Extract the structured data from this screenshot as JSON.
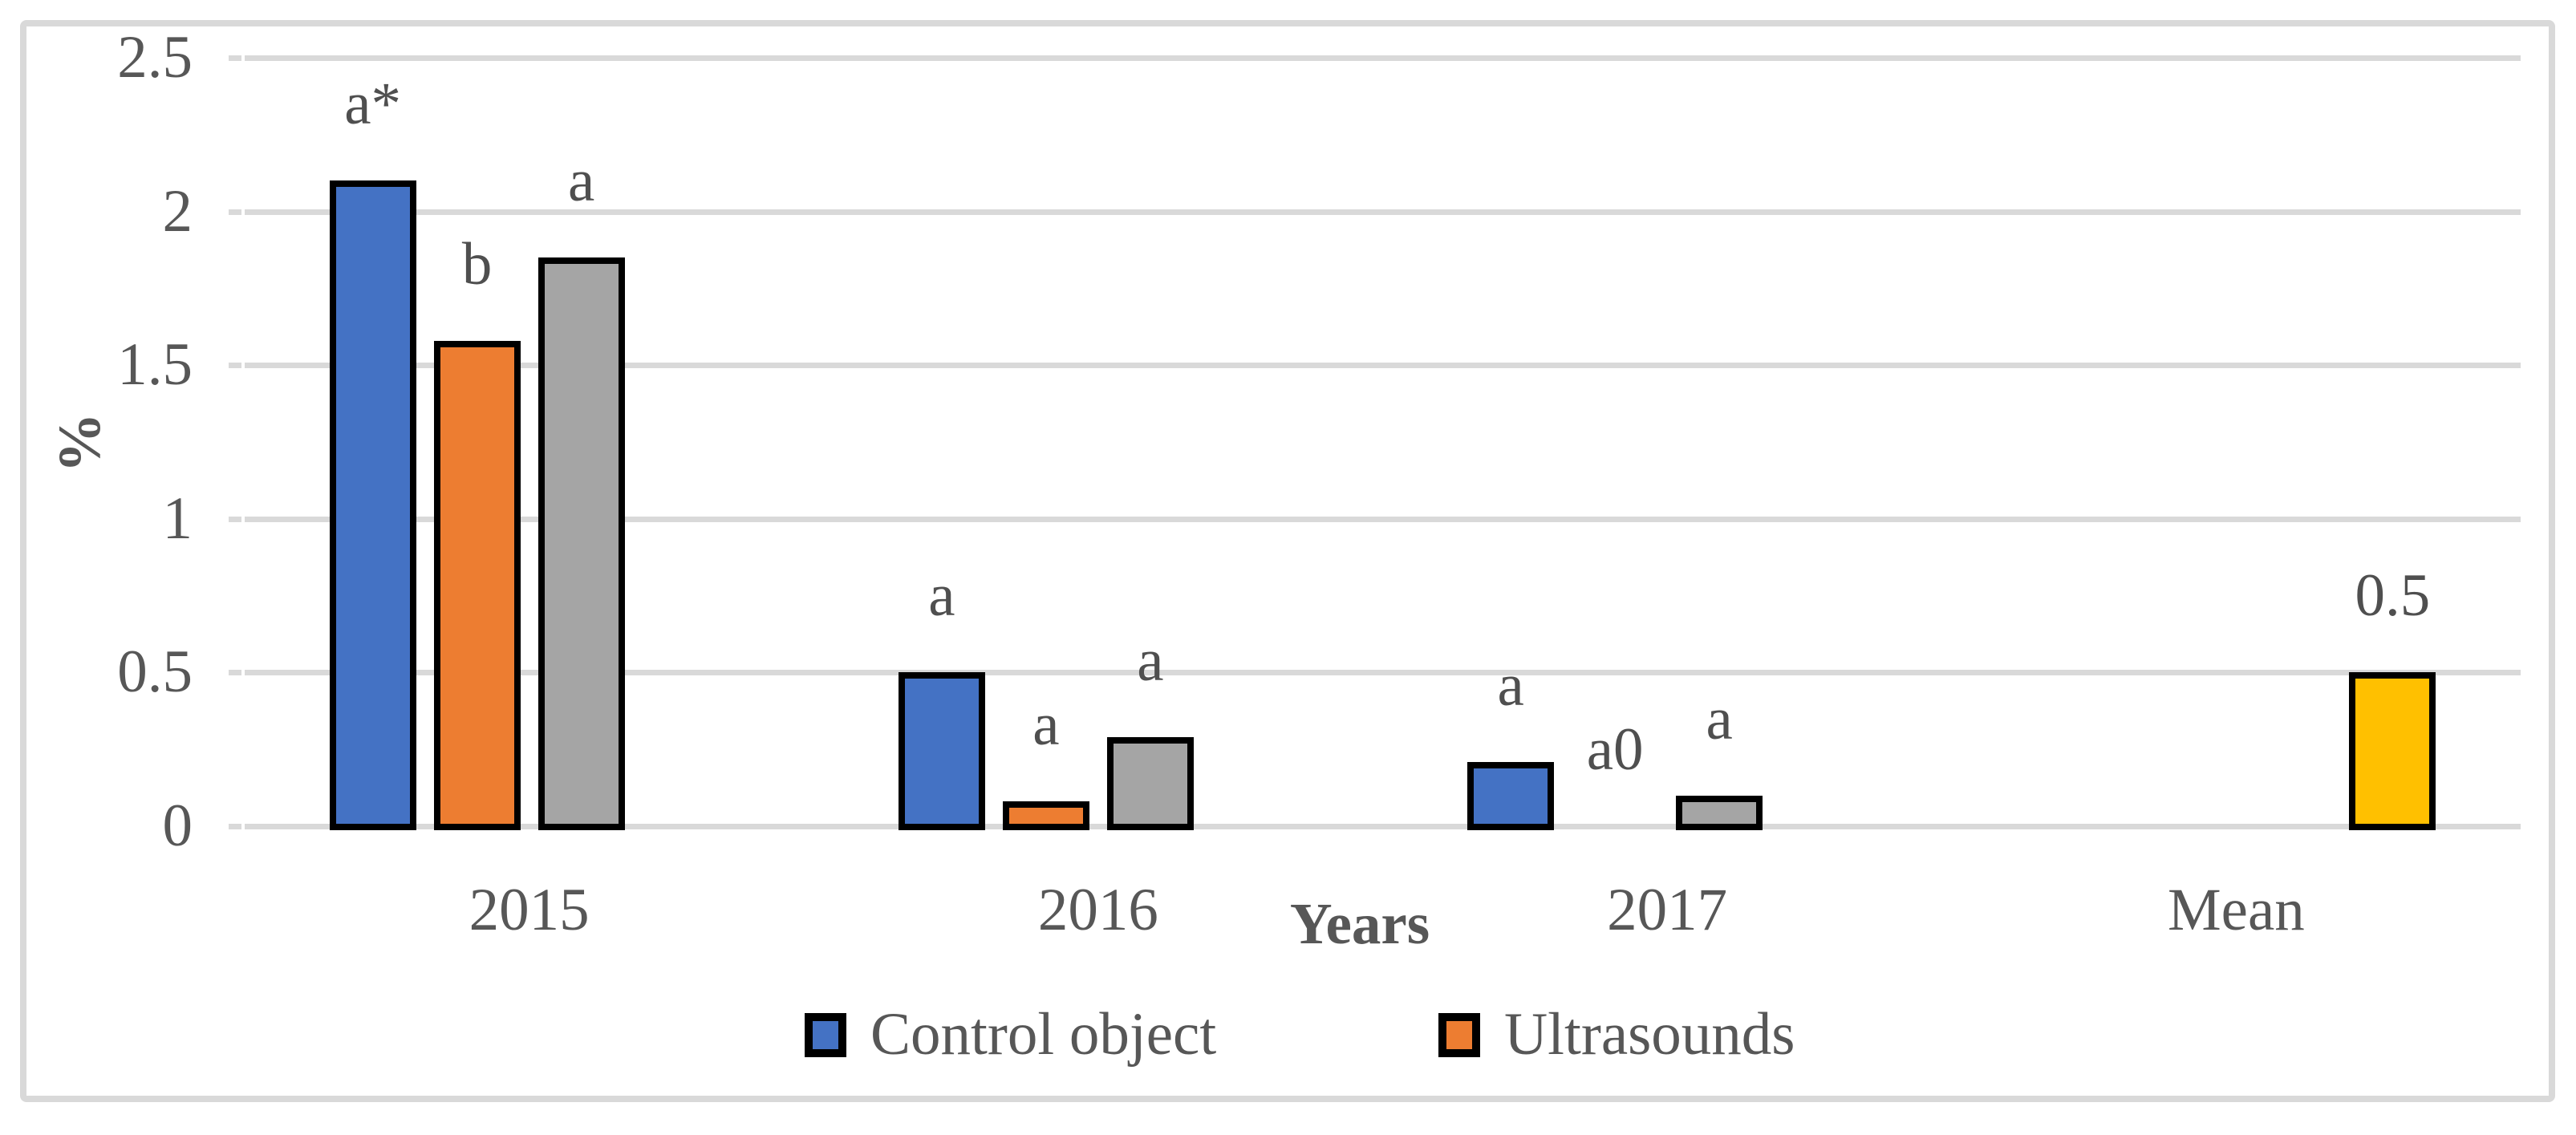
{
  "figure": {
    "background": "#FFFFFF",
    "frame_color": "#D9D9D9",
    "gridline_color": "#D9D9D9",
    "text_color": "#575757",
    "bar_outline_color": "#000000"
  },
  "chart_data": {
    "type": "bar",
    "title": "",
    "categories": [
      "2015",
      "2016",
      "2017",
      "Mean"
    ],
    "series": [
      {
        "name": "Control object",
        "color": "#4472C4",
        "in_legend": true,
        "values": [
          2.1,
          0.5,
          0.21,
          null
        ],
        "bar_labels": [
          "a*",
          "a",
          "a",
          ""
        ]
      },
      {
        "name": "Ultrasounds",
        "color": "#ED7D31",
        "in_legend": true,
        "values": [
          1.58,
          0.08,
          0,
          null
        ],
        "bar_labels": [
          "b",
          "a",
          "a0",
          ""
        ]
      },
      {
        "name": "",
        "color": "#A5A5A5",
        "in_legend": false,
        "values": [
          1.85,
          0.29,
          0.1,
          null
        ],
        "bar_labels": [
          "a",
          "a",
          "a",
          ""
        ]
      },
      {
        "name": "",
        "color": "#FFC000",
        "in_legend": false,
        "values": [
          null,
          null,
          null,
          0.5
        ],
        "bar_labels": [
          "",
          "",
          "",
          "0.5"
        ]
      }
    ],
    "xlabel": "Years",
    "ylabel": "%",
    "ylim": [
      0,
      2.5
    ],
    "yticks": [
      "0",
      "0.5",
      "1",
      "1.5",
      "2",
      "2.5"
    ],
    "grid": true,
    "legend": {
      "position": "bottom",
      "entries": [
        {
          "label": "Control object",
          "color": "#4472C4"
        },
        {
          "label": "Ultrasounds",
          "color": "#ED7D31"
        }
      ]
    }
  }
}
